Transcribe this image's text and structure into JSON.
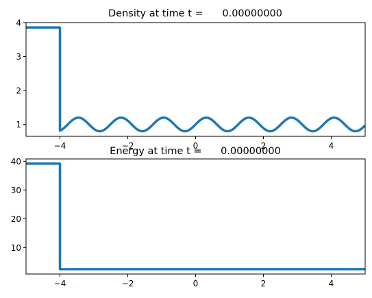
{
  "chart_data": [
    {
      "type": "line",
      "title": "Density at time t =      0.00000000",
      "xlabel": "",
      "ylabel": "",
      "xlim": [
        -5,
        5
      ],
      "ylim": [
        0.65,
        4.0
      ],
      "xticks": [
        -4,
        -2,
        0,
        2,
        4
      ],
      "xtick_labels": [
        "−4",
        "−2",
        "0",
        "2",
        "4"
      ],
      "yticks": [
        1,
        2,
        3,
        4
      ],
      "ytick_labels": [
        "1",
        "2",
        "3",
        "4"
      ],
      "grid": false,
      "legend": "none",
      "color": "#1f77b4",
      "description_of_curve": "piecewise: constant 3.857 for x < -4; for x >= -4, 1 + 0.2*sin(5x)",
      "series": [
        {
          "left_state": {
            "x_end": -4.0,
            "value": 3.857143
          },
          "right_state": {
            "x_start": -4.0,
            "base": 1.0,
            "amplitude": 0.2,
            "wavenumber": 5
          }
        }
      ]
    },
    {
      "type": "line",
      "title": "Energy at time t =      0.00000000",
      "xlabel": "",
      "ylabel": "",
      "xlim": [
        -5,
        5
      ],
      "ylim": [
        0.8,
        40.8
      ],
      "xticks": [
        -4,
        -2,
        0,
        2,
        4
      ],
      "xtick_labels": [
        "−4",
        "−2",
        "0",
        "2",
        "4"
      ],
      "yticks": [
        10,
        20,
        30,
        40
      ],
      "ytick_labels": [
        "10",
        "20",
        "30",
        "40"
      ],
      "grid": false,
      "legend": "none",
      "color": "#1f77b4",
      "series": [
        {
          "left_state": {
            "x_end": -4.0,
            "value": 39.17
          },
          "right_state": {
            "x_start": -4.0,
            "value": 2.5
          }
        }
      ]
    }
  ]
}
